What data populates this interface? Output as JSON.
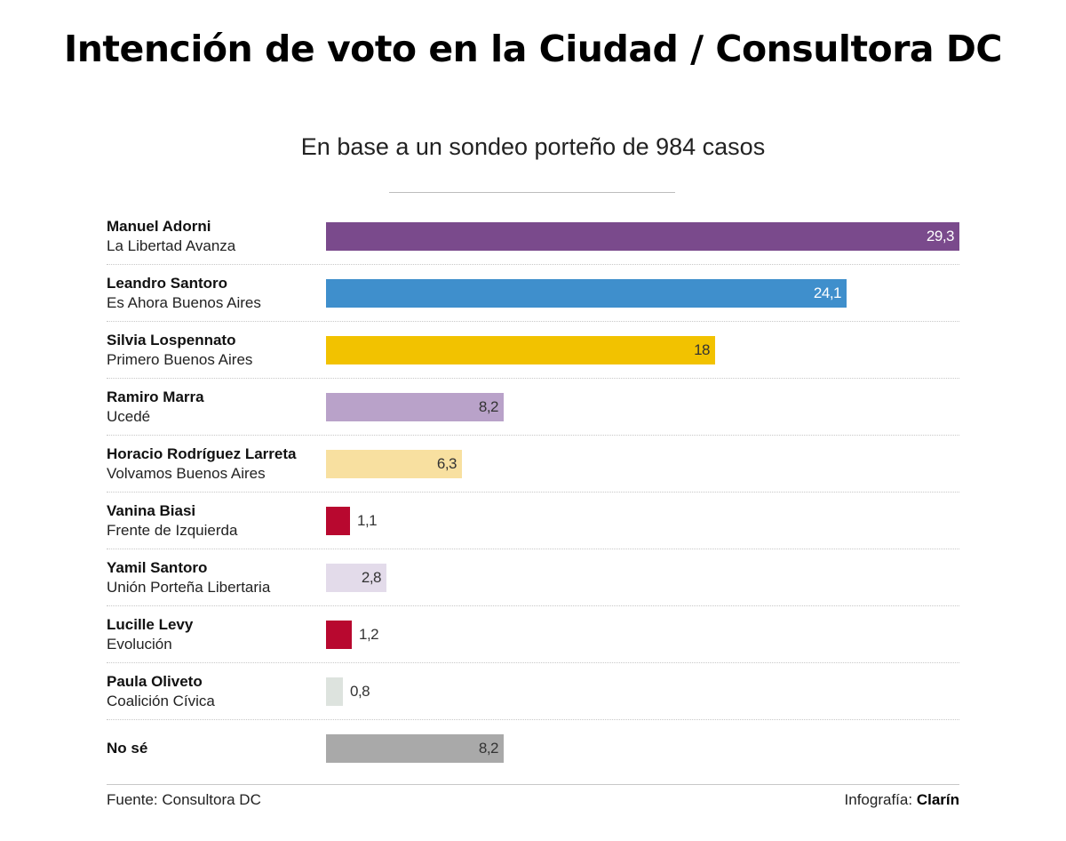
{
  "header": {
    "title": "Intención de voto en la Ciudad / Consultora DC",
    "subtitle": "En base a un sondeo porteño de 984 casos"
  },
  "chart_data": {
    "type": "bar",
    "orientation": "horizontal",
    "title": "Intención de voto en la Ciudad / Consultora DC",
    "subtitle": "En base a un sondeo porteño de 984 casos",
    "xlim": [
      0,
      29.3
    ],
    "categories": [
      "Manuel Adorni",
      "Leandro Santoro",
      "Silvia Lospennato",
      "Ramiro Marra",
      "Horacio Rodríguez Larreta",
      "Vanina Biasi",
      "Yamil Santoro",
      "Lucille Levy",
      "Paula Oliveto",
      "No sé"
    ],
    "values": [
      29.3,
      24.1,
      18,
      8.2,
      6.3,
      1.1,
      2.8,
      1.2,
      0.8,
      8.2
    ],
    "rows": [
      {
        "name": "Manuel Adorni",
        "party": "La Libertad Avanza",
        "value": 29.3,
        "label": "29,3",
        "color": "#7a4a8c",
        "label_color": "#ffffff"
      },
      {
        "name": "Leandro Santoro",
        "party": "Es Ahora Buenos Aires",
        "value": 24.1,
        "label": "24,1",
        "color": "#3f8fcc",
        "label_color": "#ffffff"
      },
      {
        "name": "Silvia Lospennato",
        "party": "Primero Buenos Aires",
        "value": 18,
        "label": "18",
        "color": "#f2c200",
        "label_color": "#333333"
      },
      {
        "name": "Ramiro Marra",
        "party": "Ucedé",
        "value": 8.2,
        "label": "8,2",
        "color": "#b9a2c9",
        "label_color": "#333333"
      },
      {
        "name": "Horacio Rodríguez Larreta",
        "party": "Volvamos Buenos Aires",
        "value": 6.3,
        "label": "6,3",
        "color": "#f8e0a0",
        "label_color": "#333333"
      },
      {
        "name": "Vanina Biasi",
        "party": "Frente de Izquierda",
        "value": 1.1,
        "label": "1,1",
        "color": "#b8082f",
        "label_color": "#333333"
      },
      {
        "name": "Yamil Santoro",
        "party": "Unión Porteña Libertaria",
        "value": 2.8,
        "label": "2,8",
        "color": "#e3dbea",
        "label_color": "#333333"
      },
      {
        "name": "Lucille Levy",
        "party": "Evolución",
        "value": 1.2,
        "label": "1,2",
        "color": "#b8082f",
        "label_color": "#333333"
      },
      {
        "name": "Paula Oliveto",
        "party": "Coalición Cívica",
        "value": 0.8,
        "label": "0,8",
        "color": "#dde3de",
        "label_color": "#333333"
      },
      {
        "name": "No sé",
        "party": "",
        "value": 8.2,
        "label": "8,2",
        "color": "#a9a9a9",
        "label_color": "#333333"
      }
    ]
  },
  "footer": {
    "source": "Fuente: Consultora DC",
    "credit_prefix": "Infografía:",
    "credit_brand": "Clarín"
  }
}
